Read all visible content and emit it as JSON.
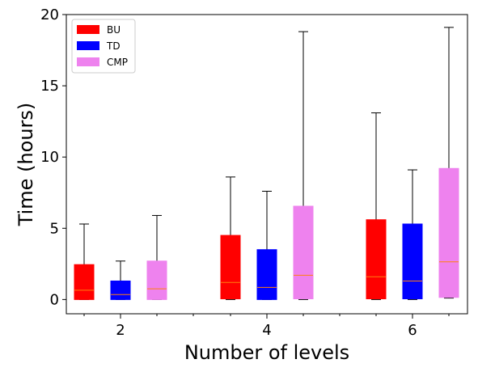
{
  "chart_data": {
    "type": "boxplot",
    "title": "",
    "xlabel": "Number of levels",
    "ylabel": "Time (hours)",
    "ylim": [
      -1,
      20
    ],
    "yticks": [
      0,
      5,
      10,
      15,
      20
    ],
    "categories": [
      "2",
      "4",
      "6"
    ],
    "legend": {
      "placement": "top-left"
    },
    "grid": false,
    "median_color": "#ff7f0e",
    "series": [
      {
        "name": "BU",
        "color": "#ff0000",
        "boxes": [
          {
            "min": 0.0,
            "q1": 0.0,
            "median": 0.65,
            "q3": 2.45,
            "max": 5.3
          },
          {
            "min": 0.0,
            "q1": 0.05,
            "median": 1.2,
            "q3": 4.5,
            "max": 8.6
          },
          {
            "min": 0.0,
            "q1": 0.05,
            "median": 1.6,
            "q3": 5.6,
            "max": 13.1
          }
        ]
      },
      {
        "name": "TD",
        "color": "#0000ff",
        "boxes": [
          {
            "min": 0.0,
            "q1": 0.0,
            "median": 0.35,
            "q3": 1.3,
            "max": 2.7
          },
          {
            "min": 0.0,
            "q1": 0.0,
            "median": 0.85,
            "q3": 3.5,
            "max": 7.6
          },
          {
            "min": 0.0,
            "q1": 0.05,
            "median": 1.3,
            "q3": 5.3,
            "max": 9.1
          }
        ]
      },
      {
        "name": "CMP",
        "color": "#ee82ee",
        "boxes": [
          {
            "min": 0.0,
            "q1": 0.0,
            "median": 0.75,
            "q3": 2.7,
            "max": 5.9
          },
          {
            "min": 0.0,
            "q1": 0.05,
            "median": 1.7,
            "q3": 6.55,
            "max": 18.8
          },
          {
            "min": 0.1,
            "q1": 0.15,
            "median": 2.65,
            "q3": 9.2,
            "max": 19.1
          }
        ]
      }
    ]
  }
}
